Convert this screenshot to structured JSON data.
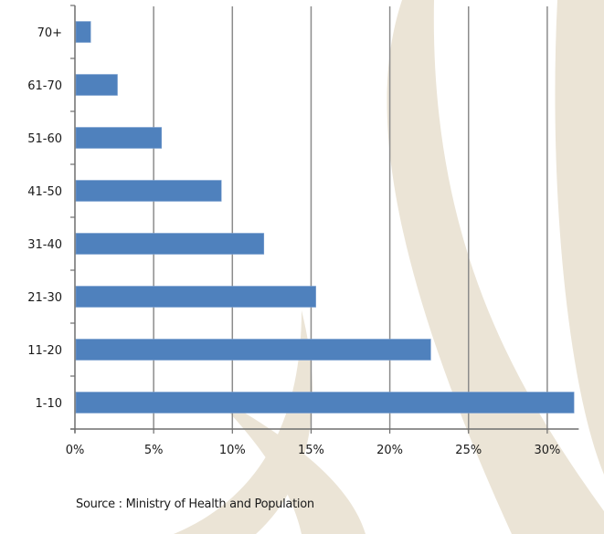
{
  "chart_data": {
    "type": "bar",
    "orientation": "horizontal",
    "title": "",
    "xlabel": "",
    "ylabel": "",
    "categories": [
      "1-10",
      "11-20",
      "21-30",
      "31-40",
      "41-50",
      "51-60",
      "61-70",
      "70+"
    ],
    "values": [
      31.7,
      22.6,
      15.3,
      12.0,
      9.3,
      5.5,
      2.7,
      1.0
    ],
    "unit": "%",
    "xlim": [
      0,
      32
    ],
    "xticks": [
      0,
      5,
      10,
      15,
      20,
      25,
      30
    ],
    "xtick_labels": [
      "0%",
      "5%",
      "10%",
      "15%",
      "20%",
      "25%",
      "30%"
    ],
    "grid": "vertical",
    "legend": "none",
    "bar_color": "#4f81bd",
    "source": "Source : Ministry of Health and Population"
  },
  "colors": {
    "watermark": "#ebe4d6",
    "gridline": "#8c8c8c",
    "axis": "#6e6e6e"
  }
}
